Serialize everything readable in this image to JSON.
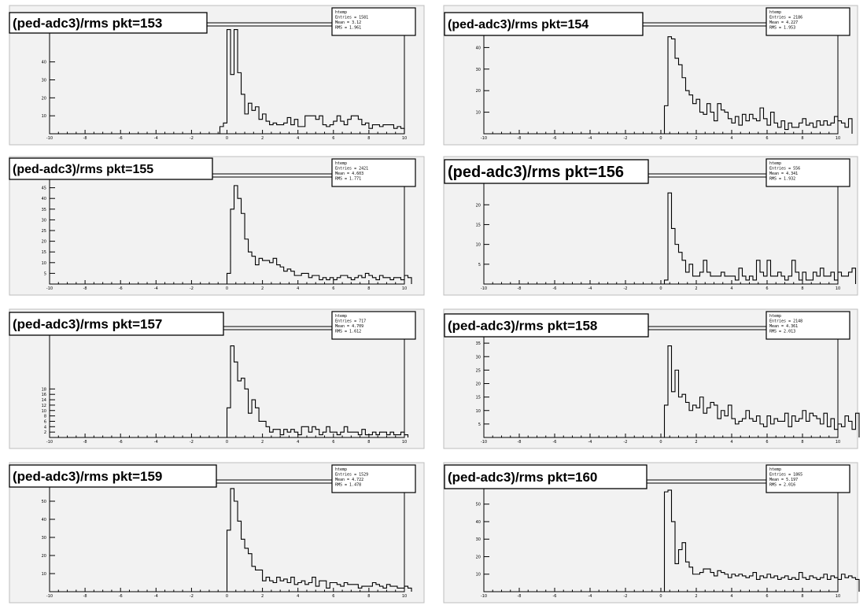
{
  "canvas": {
    "background": "#ffffff",
    "pad_fill": "#f2f2f2",
    "frame_color": "#bdbdbd",
    "line_color": "#000000"
  },
  "x_tick_labels": [
    "-10",
    "-8",
    "-6",
    "-4",
    "-2",
    "0",
    "2",
    "4",
    "6",
    "8",
    "10"
  ],
  "chart_data": [
    {
      "type": "histogram",
      "title": "(ped-adc3)/rms pkt=153",
      "stats": {
        "name": "htemp",
        "entries": "Entries = 1581",
        "mean": "Mean  = 3.12",
        "rms": "RMS   = 1.961"
      },
      "xlim": [
        -10,
        10
      ],
      "ylim": [
        0,
        60
      ],
      "y_tick_labels": [
        "10",
        "20",
        "30",
        "40"
      ],
      "bin_edges_start": -0.4,
      "bin_width": 0.2,
      "values": [
        4,
        6,
        58,
        33,
        58,
        34,
        22,
        11,
        17,
        13,
        15,
        8,
        11,
        7,
        5,
        6,
        5,
        5,
        6,
        9,
        5,
        8,
        4,
        4,
        10,
        10,
        10,
        8,
        10,
        5,
        4,
        5,
        7,
        10,
        7,
        5,
        8,
        10,
        10,
        8,
        5,
        6,
        3,
        5,
        5,
        4,
        5,
        5,
        5,
        3,
        4,
        3
      ]
    },
    {
      "type": "histogram",
      "title": "(ped-adc3)/rms pkt=154",
      "stats": {
        "name": "htemp",
        "entries": "Entries = 2186",
        "mean": "Mean  = 4.227",
        "rms": "RMS   = 1.953"
      },
      "xlim": [
        -10,
        10
      ],
      "ylim": [
        0,
        50
      ],
      "y_tick_labels": [
        "10",
        "20",
        "30",
        "40"
      ],
      "bin_edges_start": 0.2,
      "bin_width": 0.2,
      "values": [
        13,
        45,
        44,
        35,
        32,
        26,
        20,
        18,
        14,
        16,
        10,
        9,
        14,
        10,
        6,
        14,
        11,
        10,
        7,
        5,
        8,
        4,
        9,
        6,
        9,
        7,
        6,
        12,
        7,
        4,
        10,
        5,
        3,
        6,
        2,
        5,
        3,
        3,
        5,
        7,
        4,
        5,
        3,
        6,
        4,
        6,
        4,
        5,
        8,
        6,
        5,
        3,
        7
      ]
    },
    {
      "type": "histogram",
      "title": "(ped-adc3)/rms pkt=155",
      "stats": {
        "name": "htemp",
        "entries": "Entries = 2421",
        "mean": "Mean  = 4.603",
        "rms": "RMS   = 1.771"
      },
      "xlim": [
        -10,
        10
      ],
      "ylim": [
        0,
        50
      ],
      "y_tick_labels": [
        "5",
        "10",
        "15",
        "20",
        "25",
        "30",
        "35",
        "40",
        "45"
      ],
      "bin_edges_start": 0.0,
      "bin_width": 0.2,
      "values": [
        5,
        35,
        46,
        40,
        33,
        21,
        15,
        13,
        9,
        12,
        11,
        11,
        10,
        12,
        9,
        8,
        6,
        7,
        6,
        4,
        4,
        5,
        5,
        3,
        4,
        4,
        2,
        3,
        2,
        3,
        2,
        3,
        4,
        4,
        3,
        2,
        3,
        4,
        3,
        5,
        4,
        3,
        2,
        4,
        3,
        3,
        2,
        3,
        3,
        2,
        4,
        3
      ]
    },
    {
      "type": "histogram",
      "title": "(ped-adc3)/rms pkt=156",
      "stats": {
        "name": "htemp",
        "entries": "Entries = 556",
        "mean": "Mean  = 4.341",
        "rms": "RMS   = 1.932"
      },
      "xlim": [
        -10,
        10
      ],
      "ylim": [
        0,
        27
      ],
      "y_tick_labels": [
        "5",
        "10",
        "15",
        "20"
      ],
      "bin_edges_start": 0.2,
      "bin_width": 0.2,
      "values": [
        1,
        23,
        14,
        10,
        8,
        6,
        3,
        5,
        2,
        2,
        3,
        6,
        3,
        2,
        2,
        2,
        3,
        2,
        2,
        2,
        1,
        4,
        2,
        1,
        2,
        1,
        6,
        3,
        2,
        6,
        2,
        2,
        3,
        2,
        1,
        2,
        6,
        3,
        1,
        3,
        1,
        1,
        3,
        2,
        4,
        2,
        2,
        3,
        1,
        3,
        2,
        2,
        3,
        4
      ]
    },
    {
      "type": "histogram",
      "title": "(ped-adc3)/rms pkt=157",
      "stats": {
        "name": "htemp",
        "entries": "Entries = 717",
        "mean": "Mean  = 4.709",
        "rms": "RMS   = 1.612"
      },
      "xlim": [
        -10,
        10
      ],
      "ylim": [
        0,
        40
      ],
      "y_tick_labels": [
        "2",
        "4",
        "6",
        "8",
        "10",
        "12",
        "14",
        "16",
        "18"
      ],
      "bin_edges_start": 0.0,
      "bin_width": 0.2,
      "values": [
        11,
        34,
        28,
        21,
        22,
        18,
        9,
        14,
        11,
        6,
        6,
        4,
        2,
        3,
        3,
        1,
        3,
        2,
        3,
        2,
        1,
        4,
        4,
        2,
        4,
        3,
        1,
        2,
        4,
        2,
        2,
        1,
        2,
        4,
        2,
        2,
        2,
        1,
        3,
        1,
        1,
        2,
        1,
        2,
        2,
        1,
        2,
        1,
        1,
        2,
        1
      ]
    },
    {
      "type": "histogram",
      "title": "(ped-adc3)/rms pkt=158",
      "stats": {
        "name": "htemp",
        "entries": "Entries = 2148",
        "mean": "Mean  = 4.361",
        "rms": "RMS   = 2.013"
      },
      "xlim": [
        -10,
        10
      ],
      "ylim": [
        0,
        40
      ],
      "y_tick_labels": [
        "5",
        "10",
        "15",
        "20",
        "25",
        "30",
        "35"
      ],
      "bin_edges_start": 0.2,
      "bin_width": 0.2,
      "values": [
        12,
        34,
        17,
        25,
        15,
        16,
        13,
        10,
        12,
        11,
        15,
        9,
        11,
        13,
        12,
        7,
        10,
        8,
        12,
        7,
        5,
        6,
        7,
        10,
        7,
        6,
        8,
        5,
        4,
        8,
        5,
        7,
        6,
        6,
        9,
        4,
        8,
        6,
        7,
        10,
        6,
        9,
        8,
        7,
        5,
        9,
        4,
        7,
        3,
        5,
        4,
        8,
        6,
        3,
        9
      ]
    },
    {
      "type": "histogram",
      "title": "(ped-adc3)/rms pkt=159",
      "stats": {
        "name": "htemp",
        "entries": "Entries = 1529",
        "mean": "Mean  = 4.722",
        "rms": "RMS   = 1.478"
      },
      "xlim": [
        -10,
        10
      ],
      "ylim": [
        0,
        60
      ],
      "y_tick_labels": [
        "10",
        "20",
        "30",
        "40",
        "50"
      ],
      "bin_edges_start": 0.0,
      "bin_width": 0.2,
      "values": [
        34,
        57,
        50,
        39,
        29,
        24,
        21,
        14,
        12,
        12,
        6,
        8,
        6,
        5,
        8,
        6,
        7,
        5,
        8,
        4,
        5,
        6,
        4,
        5,
        8,
        3,
        6,
        6,
        2,
        5,
        5,
        4,
        3,
        5,
        4,
        4,
        4,
        2,
        3,
        3,
        3,
        5,
        4,
        3,
        2,
        4,
        3,
        3,
        2,
        2,
        3,
        2
      ]
    },
    {
      "type": "histogram",
      "title": "(ped-adc3)/rms pkt=160",
      "stats": {
        "name": "htemp",
        "entries": "Entries = 1865",
        "mean": "Mean  = 5.197",
        "rms": "RMS   = 2.016"
      },
      "xlim": [
        -10,
        10
      ],
      "ylim": [
        0,
        62
      ],
      "y_tick_labels": [
        "10",
        "20",
        "30",
        "40",
        "50"
      ],
      "bin_edges_start": 0.2,
      "bin_width": 0.2,
      "values": [
        57,
        58,
        40,
        16,
        24,
        28,
        17,
        14,
        10,
        10,
        11,
        13,
        13,
        11,
        9,
        12,
        11,
        10,
        8,
        10,
        9,
        10,
        9,
        8,
        9,
        11,
        7,
        9,
        8,
        10,
        8,
        9,
        7,
        8,
        9,
        7,
        8,
        7,
        11,
        8,
        7,
        9,
        8,
        7,
        8,
        10,
        7,
        9,
        8,
        7,
        10,
        8,
        9,
        8,
        7
      ]
    }
  ]
}
